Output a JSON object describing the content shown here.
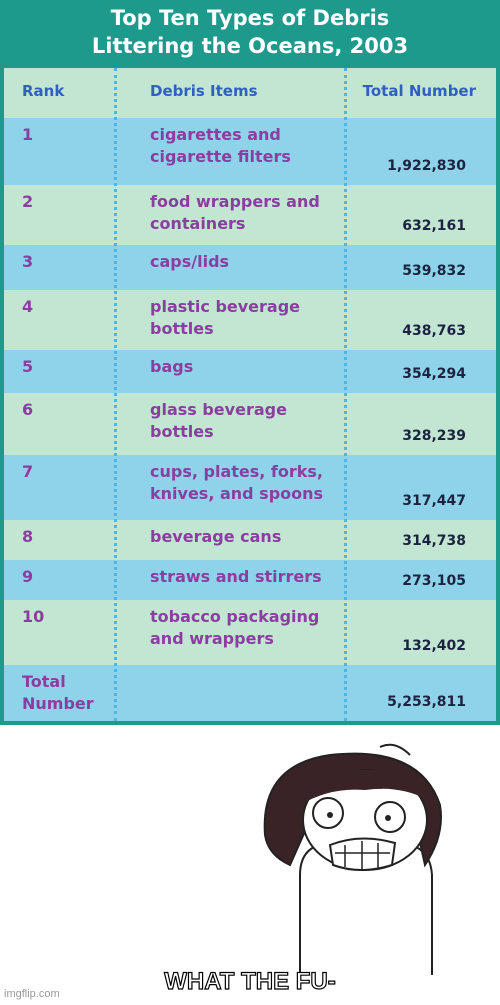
{
  "table": {
    "title": "Top Ten Types of Debris Littering the Oceans, 2003",
    "headers": [
      "Rank",
      "Debris Items",
      "Total Number"
    ],
    "rows": [
      [
        "1",
        "cigarettes and cigarette filters",
        "1,922,830"
      ],
      [
        "2",
        "food wrappers and containers",
        "632,161"
      ],
      [
        "3",
        "caps/lids",
        "539,832"
      ],
      [
        "4",
        "plastic beverage bottles",
        "438,763"
      ],
      [
        "5",
        "bags",
        "354,294"
      ],
      [
        "6",
        "glass beverage bottles",
        "328,239"
      ],
      [
        "7",
        "cups, plates, forks, knives, and spoons",
        "317,447"
      ],
      [
        "8",
        "beverage cans",
        "314,738"
      ],
      [
        "9",
        "straws and stirrers",
        "273,105"
      ],
      [
        "10",
        "tobacco packaging and wrappers",
        "132,402"
      ]
    ],
    "total": [
      "Total Number",
      "5,253,811"
    ]
  },
  "caption": "WHAT THE FU-",
  "watermark": "imgflip.com"
}
